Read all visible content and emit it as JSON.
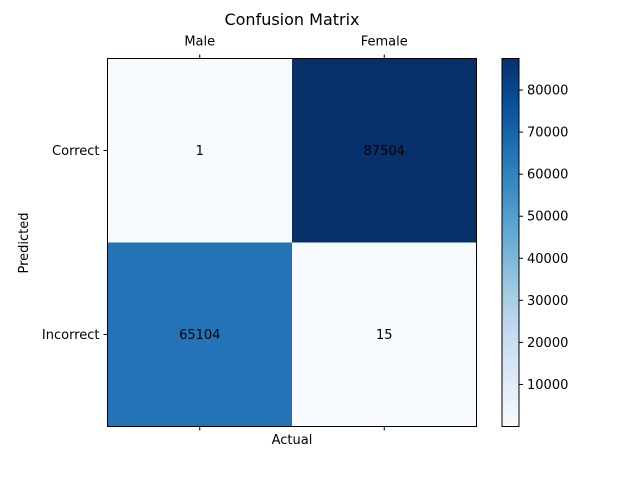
{
  "chart_data": {
    "type": "heatmap",
    "title": "Confusion Matrix",
    "xlabel": "Actual",
    "ylabel": "Predicted",
    "x_categories": [
      "Male",
      "Female"
    ],
    "y_categories": [
      "Correct",
      "Incorrect"
    ],
    "values": [
      [
        1,
        87504
      ],
      [
        65104,
        15
      ]
    ],
    "colormap": "Blues",
    "color_min": 1,
    "color_max": 87504,
    "colorbar_ticks": [
      10000,
      20000,
      30000,
      40000,
      50000,
      60000,
      70000,
      80000
    ],
    "colors": {
      "low": "#f7fbff",
      "high": "#08306b"
    }
  }
}
